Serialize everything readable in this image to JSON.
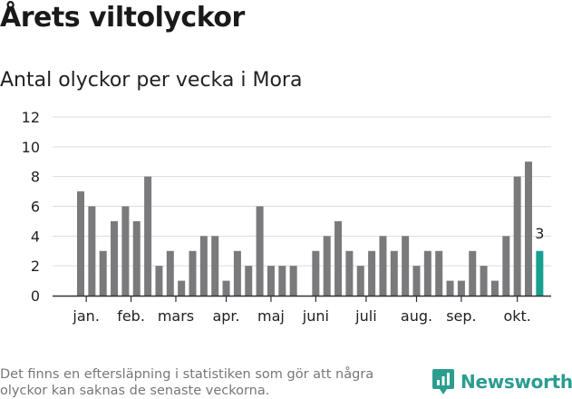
{
  "title": "Årets viltolyckor",
  "subtitle": "Antal olyckor per vecka i Mora",
  "footnote": "Det finns en eftersläpning i statistiken som gör att några olyckor kan saknas de senaste veckorna.",
  "brand": {
    "name": "Newsworthy",
    "logo_icon": "newsworthy-chart-logo-icon"
  },
  "colors": {
    "bar": "#7a7a7c",
    "highlight": "#16a090",
    "grid": "#dddddd",
    "text": "#222222",
    "brand": "#2a9d8f"
  },
  "chart_data": {
    "type": "bar",
    "ylim": [
      0,
      12
    ],
    "yticks": [
      0,
      2,
      4,
      6,
      8,
      10,
      12
    ],
    "grid": true,
    "xlabel": "",
    "ylabel": "",
    "x": [
      1,
      2,
      3,
      4,
      5,
      6,
      7,
      8,
      9,
      10,
      11,
      12,
      13,
      14,
      15,
      16,
      17,
      18,
      19,
      20,
      21,
      22,
      23,
      24,
      25,
      26,
      27,
      28,
      29,
      30,
      31,
      32,
      33,
      34,
      35,
      36,
      37,
      38,
      39,
      40,
      41,
      42
    ],
    "values": [
      7,
      6,
      3,
      5,
      6,
      5,
      8,
      2,
      3,
      1,
      3,
      4,
      4,
      1,
      3,
      2,
      6,
      2,
      2,
      2,
      0,
      3,
      4,
      5,
      3,
      2,
      3,
      4,
      3,
      4,
      2,
      3,
      3,
      1,
      1,
      3,
      2,
      1,
      4,
      8,
      9,
      3
    ],
    "highlight_index": 41,
    "highlight_label": "3",
    "month_ticks": [
      {
        "label": "jan.",
        "week": 1.5
      },
      {
        "label": "feb.",
        "week": 5.5
      },
      {
        "label": "mars",
        "week": 9.5
      },
      {
        "label": "apr.",
        "week": 14
      },
      {
        "label": "maj",
        "week": 18
      },
      {
        "label": "juni",
        "week": 22
      },
      {
        "label": "juli",
        "week": 26.5
      },
      {
        "label": "aug.",
        "week": 31
      },
      {
        "label": "sep.",
        "week": 35
      },
      {
        "label": "okt.",
        "week": 40
      }
    ]
  }
}
